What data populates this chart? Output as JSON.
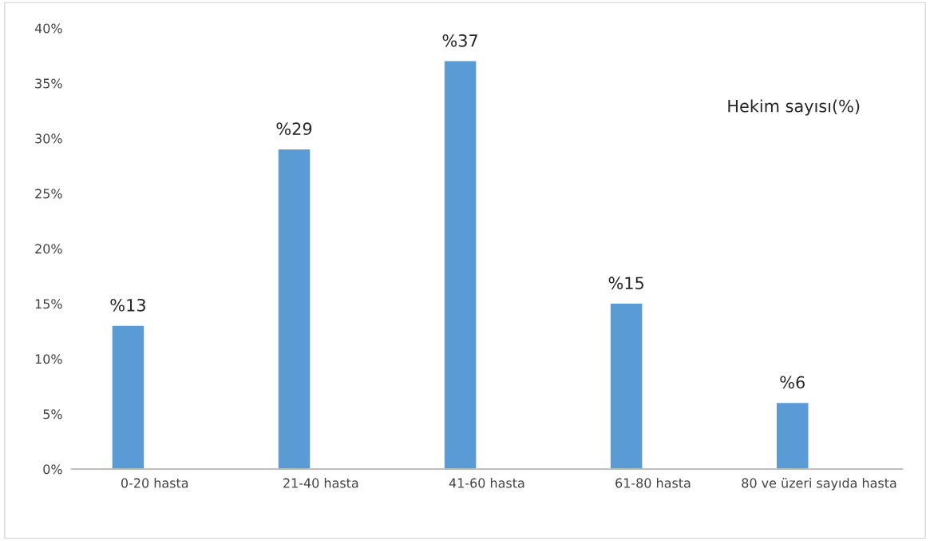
{
  "chart_data": {
    "type": "bar",
    "categories": [
      "0-20 hasta",
      "21-40 hasta",
      "41-60 hasta",
      "61-80 hasta",
      "80 ve üzeri sayıda hasta"
    ],
    "values": [
      13,
      29,
      37,
      15,
      6
    ],
    "color": "#5b9bd5",
    "value_labels": [
      "%13",
      "%29",
      "%37",
      "%15",
      "%6"
    ],
    "ylim": [
      0,
      40
    ],
    "yticks": [
      {
        "value": 0,
        "label": "0%"
      },
      {
        "value": 5,
        "label": "5%"
      },
      {
        "value": 10,
        "label": "10%"
      },
      {
        "value": 15,
        "label": "15%"
      },
      {
        "value": 20,
        "label": "20%"
      },
      {
        "value": 25,
        "label": "25%"
      },
      {
        "value": 30,
        "label": "30%"
      },
      {
        "value": 35,
        "label": "35%"
      },
      {
        "value": 40,
        "label": "40%"
      }
    ],
    "annotations": [
      "Hekim sayısı(%)"
    ],
    "grid": false,
    "legend": false
  }
}
